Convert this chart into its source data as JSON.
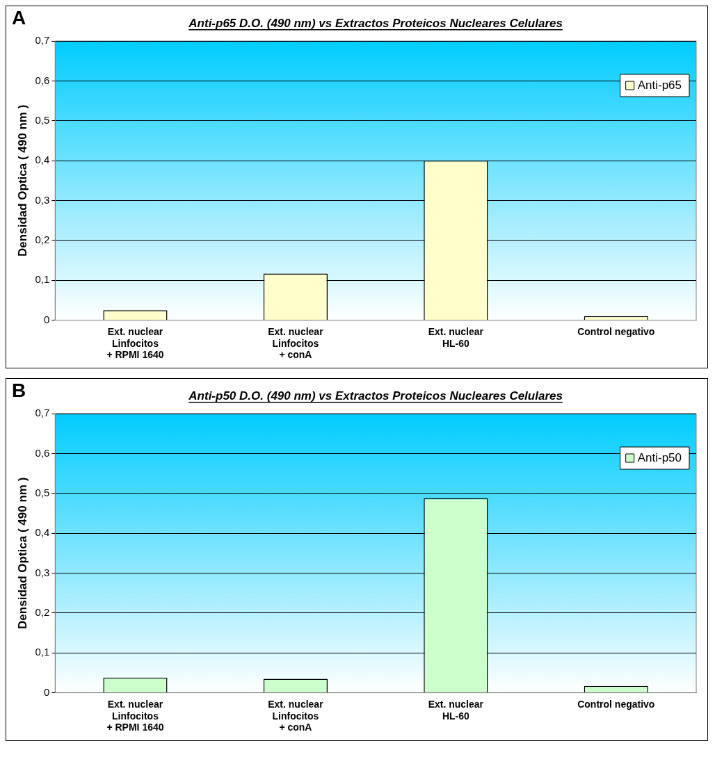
{
  "chart_data": [
    {
      "type": "bar",
      "title": "Anti-p65 D.O. (490 nm) vs Extractos Proteicos Nucleares Celulares",
      "ylabel": "Densidad Optica ( 490 nm )",
      "annotations": [
        "A"
      ],
      "categories": [
        "Ext. nuclear\nLinfocitos\n+ RPMI 1640",
        "Ext. nuclear\nLinfocitos\n+ conA",
        "Ext. nuclear\nHL-60",
        "Control negativo"
      ],
      "series": [
        {
          "name": "Anti-p65",
          "color": "#ffffcc",
          "values": [
            0.025,
            0.117,
            0.4,
            0.01
          ]
        }
      ],
      "ylim": [
        0,
        0.7
      ],
      "yticks": [
        {
          "value": 0,
          "label": "0"
        },
        {
          "value": 0.1,
          "label": "0,1"
        },
        {
          "value": 0.2,
          "label": "0,2"
        },
        {
          "value": 0.3,
          "label": "0,3"
        },
        {
          "value": 0.4,
          "label": "0,4"
        },
        {
          "value": 0.5,
          "label": "0,5"
        },
        {
          "value": 0.6,
          "label": "0,6"
        },
        {
          "value": 0.7,
          "label": "0,7"
        }
      ],
      "grid": "y",
      "legend": "top right"
    },
    {
      "type": "bar",
      "title": "Anti-p50 D.O. (490 nm) vs Extractos Proteicos Nucleares Celulares",
      "ylabel": "Densidad Optica ( 490 nm )",
      "annotations": [
        "B"
      ],
      "categories": [
        "Ext. nuclear\nLinfocitos\n+ RPMI 1640",
        "Ext. nuclear\nLinfocitos\n+ conA",
        "Ext. nuclear\nHL-60",
        "Control negativo"
      ],
      "series": [
        {
          "name": "Anti-p50",
          "color": "#ccffcc",
          "values": [
            0.038,
            0.035,
            0.488,
            0.017
          ]
        }
      ],
      "ylim": [
        0,
        0.7
      ],
      "yticks": [
        {
          "value": 0,
          "label": "0"
        },
        {
          "value": 0.1,
          "label": "0,1"
        },
        {
          "value": 0.2,
          "label": "0,2"
        },
        {
          "value": 0.3,
          "label": "0,3"
        },
        {
          "value": 0.4,
          "label": "0,4"
        },
        {
          "value": 0.5,
          "label": "0,5"
        },
        {
          "value": 0.6,
          "label": "0,6"
        },
        {
          "value": 0.7,
          "label": "0,7"
        }
      ],
      "grid": "y",
      "legend": "top right"
    }
  ]
}
